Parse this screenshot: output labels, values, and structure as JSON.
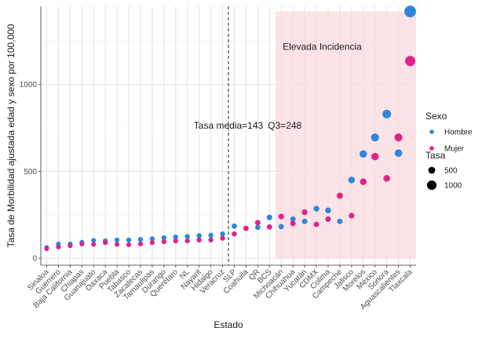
{
  "chart_data": {
    "type": "scatter",
    "xlabel": "Estado",
    "ylabel": "Tasa de Morbilidad ajustada edad y sexo por 100,000",
    "ylim": [
      -40,
      1450
    ],
    "yticks": [
      0,
      500,
      1000
    ],
    "grid": true,
    "categories": [
      "Sinaloa",
      "Guerrero",
      "Baja California",
      "Chiapas",
      "Guanajuato",
      "Oaxaca",
      "Puebla",
      "Tabasco",
      "Zacatecas",
      "Tamaulipas",
      "Durango",
      "Querétaro",
      "NL",
      "Nayarit",
      "Hidalgo",
      "Veracruz",
      "SLP",
      "Coahuila",
      "QR",
      "BCS",
      "Michoacán",
      "Chihuahua",
      "Yucatán",
      "CDMX",
      "Colima",
      "Campeche",
      "Jalisco",
      "Morelos",
      "México",
      "Sonora",
      "Aguascalientes",
      "Tlaxcala"
    ],
    "series": [
      {
        "name": "Hombre",
        "color": "#2e86de",
        "values": [
          62,
          82,
          82,
          92,
          102,
          100,
          105,
          105,
          108,
          112,
          118,
          122,
          125,
          130,
          132,
          140,
          185,
          172,
          178,
          235,
          182,
          225,
          212,
          285,
          275,
          212,
          450,
          600,
          695,
          830,
          605,
          1420
        ]
      },
      {
        "name": "Mujer",
        "color": "#e0218a",
        "values": [
          55,
          65,
          72,
          82,
          80,
          90,
          80,
          78,
          82,
          90,
          95,
          100,
          100,
          105,
          105,
          115,
          140,
          172,
          205,
          180,
          240,
          200,
          265,
          195,
          225,
          360,
          245,
          440,
          585,
          460,
          695,
          1135
        ]
      }
    ],
    "annotations": [
      {
        "text": "Tasa media=143",
        "x": 15.5,
        "y": 745
      },
      {
        "text": "Q3=248",
        "x": 20.3,
        "y": 745
      },
      {
        "text": "Elevada Incidencia",
        "x": 23.5,
        "y": 1200
      }
    ],
    "vline_x": 15.5,
    "highlight": {
      "x_start": 19.5,
      "x_end": 31.5,
      "y_start": 0,
      "y_end": 1420
    },
    "legend": {
      "placement": "right",
      "color_title": "Sexo",
      "color_entries": [
        {
          "label": "Hombre",
          "color": "#2e86de"
        },
        {
          "label": "Mujer",
          "color": "#e0218a"
        }
      ],
      "size_title": "Tasa",
      "size_entries": [
        {
          "label": "500",
          "value": 500
        },
        {
          "label": "1000",
          "value": 1000
        }
      ]
    }
  }
}
